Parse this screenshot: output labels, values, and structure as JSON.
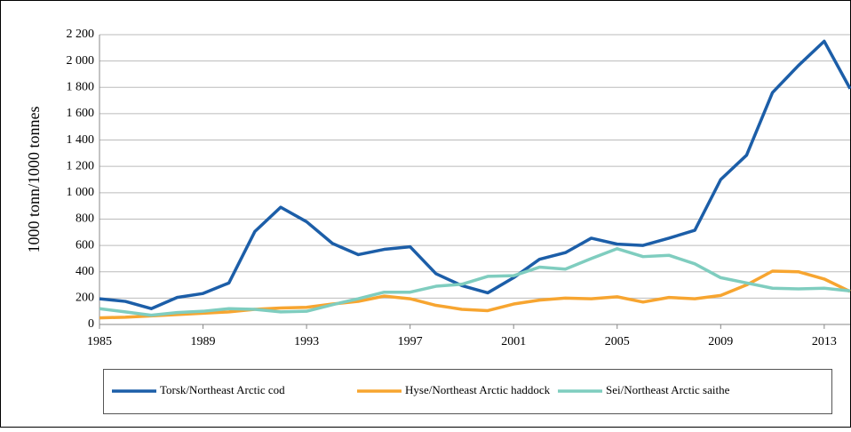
{
  "chart_data": {
    "type": "line",
    "y_label": "1000 tonn/1000 tonnes",
    "x": [
      1985,
      1986,
      1987,
      1988,
      1989,
      1990,
      1991,
      1992,
      1993,
      1994,
      1995,
      1996,
      1997,
      1998,
      1999,
      2000,
      2001,
      2002,
      2003,
      2004,
      2005,
      2006,
      2007,
      2008,
      2009,
      2010,
      2011,
      2012,
      2013,
      2014
    ],
    "series": [
      {
        "name": "Torsk/Northeast Arctic cod",
        "color": "#1c5ea8",
        "values": [
          195,
          175,
          120,
          205,
          235,
          315,
          705,
          890,
          780,
          615,
          530,
          570,
          590,
          385,
          295,
          240,
          355,
          495,
          545,
          655,
          610,
          600,
          655,
          715,
          1100,
          1285,
          1760,
          1965,
          2150,
          1790
        ]
      },
      {
        "name": "Hyse/Northeast Arctic haddock",
        "color": "#f7a530",
        "values": [
          50,
          55,
          65,
          75,
          85,
          95,
          115,
          125,
          130,
          155,
          175,
          215,
          195,
          145,
          115,
          105,
          155,
          185,
          200,
          195,
          210,
          170,
          205,
          195,
          220,
          300,
          405,
          400,
          345,
          250
        ]
      },
      {
        "name": "Sei/Northeast Arctic saithe",
        "color": "#7fcdbf",
        "values": [
          120,
          95,
          70,
          90,
          100,
          120,
          115,
          95,
          100,
          150,
          195,
          245,
          245,
          290,
          305,
          365,
          370,
          435,
          420,
          500,
          575,
          515,
          525,
          460,
          355,
          315,
          275,
          270,
          275,
          255
        ]
      }
    ],
    "xlim": [
      1985,
      2014
    ],
    "xticks": [
      1985,
      1989,
      1993,
      1997,
      2001,
      2005,
      2009,
      2013
    ],
    "ylim": [
      0,
      2200
    ],
    "yticks": [
      0,
      200,
      400,
      600,
      800,
      {
        "value": 1000,
        "label": "1 000"
      },
      {
        "value": 1200,
        "label": "1 200"
      },
      {
        "value": 1400,
        "label": "1 400"
      },
      {
        "value": 1600,
        "label": "1 600"
      },
      {
        "value": 1800,
        "label": "1 800"
      },
      {
        "value": 2000,
        "label": "2 000"
      },
      {
        "value": 2200,
        "label": "2 200"
      }
    ],
    "grid": true,
    "legend": "bottom"
  }
}
